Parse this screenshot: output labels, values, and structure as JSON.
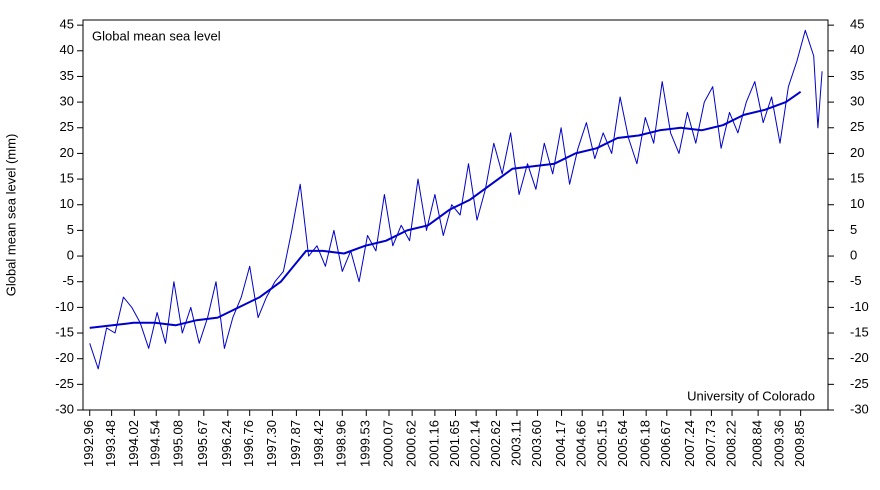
{
  "chart_data": {
    "type": "line",
    "annotations": [
      "Global mean sea level",
      "University of Colorado"
    ],
    "y_label": "Global mean sea level (mm)",
    "xlim": [
      1992.8,
      2010.5
    ],
    "ylim": [
      -30,
      46
    ],
    "yticks": [
      -30,
      -25,
      -20,
      -15,
      -10,
      -5,
      0,
      5,
      10,
      15,
      20,
      25,
      30,
      35,
      40,
      45
    ],
    "xticks": [
      1992.96,
      1993.48,
      1994.02,
      1994.54,
      1995.08,
      1995.67,
      1996.24,
      1996.76,
      {
        "value": 1997.3,
        "label": "1997.30"
      },
      1997.87,
      1998.42,
      1998.96,
      1999.53,
      2000.07,
      2000.62,
      2001.16,
      2001.65,
      2002.14,
      2002.62,
      2003.11,
      {
        "value": 2003.6,
        "label": "2003.60"
      },
      2004.17,
      2004.66,
      2005.15,
      2005.64,
      2006.18,
      2006.67,
      2007.24,
      2007.73,
      2008.22,
      2008.84,
      2009.36,
      2009.85
    ],
    "series": [
      {
        "color": "#0000cc",
        "width": 1,
        "x": [
          1992.96,
          1993.16,
          1993.36,
          1993.56,
          1993.76,
          1993.96,
          1994.16,
          1994.36,
          1994.56,
          1994.76,
          1994.96,
          1995.16,
          1995.36,
          1995.56,
          1995.76,
          1995.96,
          1996.16,
          1996.36,
          1996.56,
          1996.76,
          1996.96,
          1997.16,
          1997.36,
          1997.56,
          1997.76,
          1997.96,
          1998.16,
          1998.36,
          1998.56,
          1998.76,
          1998.96,
          1999.16,
          1999.36,
          1999.56,
          1999.76,
          1999.96,
          2000.16,
          2000.36,
          2000.56,
          2000.76,
          2000.96,
          2001.16,
          2001.36,
          2001.56,
          2001.76,
          2001.96,
          2002.16,
          2002.36,
          2002.56,
          2002.76,
          2002.96,
          2003.16,
          2003.36,
          2003.56,
          2003.76,
          2003.96,
          2004.16,
          2004.36,
          2004.56,
          2004.76,
          2004.96,
          2005.16,
          2005.36,
          2005.56,
          2005.76,
          2005.96,
          2006.16,
          2006.36,
          2006.56,
          2006.76,
          2006.96,
          2007.16,
          2007.36,
          2007.56,
          2007.76,
          2007.96,
          2008.16,
          2008.36,
          2008.56,
          2008.76,
          2008.96,
          2009.16,
          2009.36,
          2009.56,
          2009.76,
          2009.96,
          2010.16,
          2010.26,
          2010.36
        ],
        "values": [
          -17,
          -22,
          -14,
          -15,
          -8,
          -10,
          -13,
          -18,
          -11,
          -17,
          -5,
          -15,
          -10,
          -17,
          -12,
          -5,
          -18,
          -12,
          -8,
          -2,
          -12,
          -8,
          -5,
          -3,
          5,
          14,
          0,
          2,
          -2,
          5,
          -3,
          1,
          -5,
          4,
          1,
          12,
          2,
          6,
          3,
          15,
          5,
          12,
          4,
          10,
          8,
          18,
          7,
          13,
          22,
          16,
          24,
          12,
          18,
          13,
          22,
          16,
          25,
          14,
          21,
          26,
          19,
          24,
          20,
          31,
          23,
          18,
          27,
          22,
          34,
          24,
          20,
          28,
          22,
          30,
          33,
          21,
          28,
          24,
          30,
          34,
          26,
          31,
          22,
          33,
          38,
          44,
          39,
          25,
          36
        ]
      },
      {
        "color": "#0000cc",
        "width": 2,
        "x": [
          1992.96,
          1993.5,
          1994,
          1994.5,
          1995,
          1995.5,
          1996,
          1996.5,
          1997,
          1997.5,
          1997.8,
          1998.1,
          1998.5,
          1999,
          1999.5,
          2000,
          2000.5,
          2001,
          2001.5,
          2002,
          2002.5,
          2003,
          2003.5,
          2004,
          2004.5,
          2005,
          2005.5,
          2006,
          2006.5,
          2007,
          2007.5,
          2008,
          2008.5,
          2009,
          2009.5,
          2009.85
        ],
        "values": [
          -14,
          -13.5,
          -13,
          -13,
          -13.5,
          -12.5,
          -12,
          -10,
          -8,
          -5,
          -2,
          1,
          1,
          0.5,
          2,
          3,
          5,
          6,
          9,
          11,
          14,
          17,
          17.5,
          18,
          20,
          21,
          23,
          23.5,
          24.5,
          25,
          24.5,
          25.5,
          27.5,
          28.5,
          30,
          32
        ]
      }
    ]
  }
}
